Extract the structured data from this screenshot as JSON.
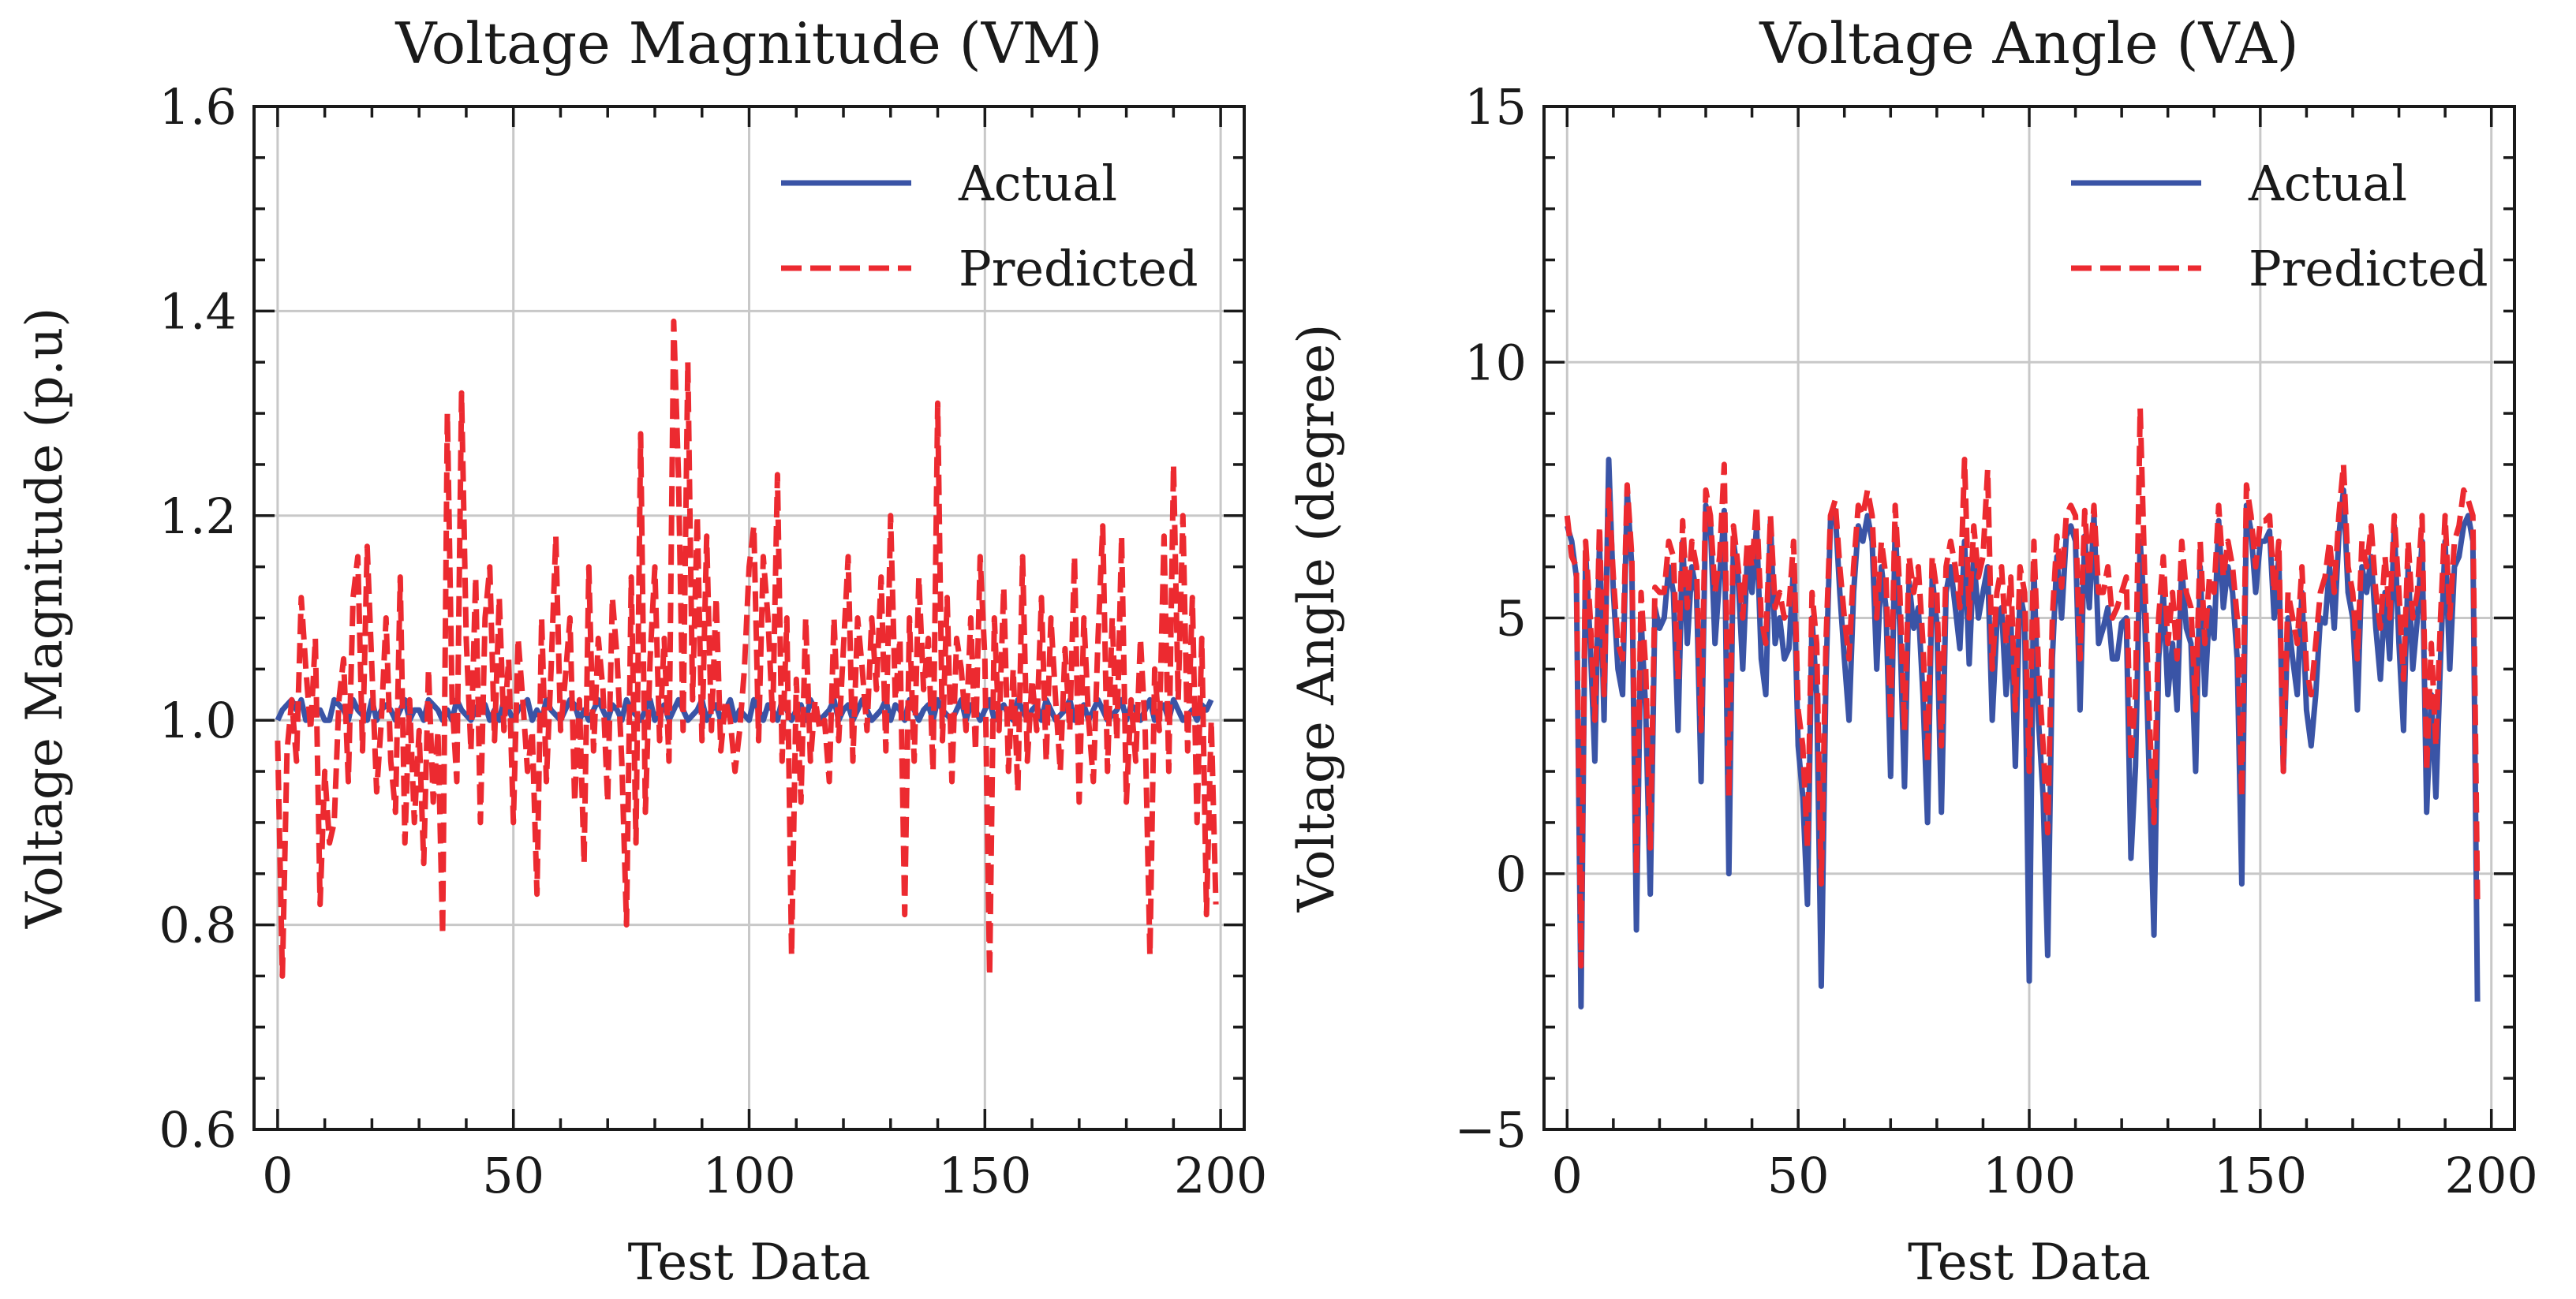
{
  "chart_data": [
    {
      "type": "line",
      "title": "Voltage Magnitude (VM)",
      "xlabel": "Test Data",
      "ylabel": "Voltage Magnitude (p.u)",
      "xlim": [
        -5,
        205
      ],
      "ylim": [
        0.6,
        1.6
      ],
      "xticks": [
        0,
        50,
        100,
        150,
        200
      ],
      "xtick_labels": [
        "0",
        "50",
        "100",
        "150",
        "200"
      ],
      "yticks": [
        0.6,
        0.8,
        1.0,
        1.2,
        1.4,
        1.6
      ],
      "ytick_labels": [
        "0.6",
        "0.8",
        "1.0",
        "1.2",
        "1.4",
        "1.6"
      ],
      "grid": true,
      "legend_position": "top-right",
      "series": [
        {
          "name": "Actual",
          "color": "#3a54a6",
          "style": "solid",
          "values": [
            1.0,
            1.01,
            1.015,
            1.02,
            1.01,
            1.02,
            1.0,
            1.005,
            1.01,
            1.01,
            1.0,
            1.0,
            1.02,
            1.015,
            1.01,
            1.0,
            1.02,
            1.01,
            1.005,
            1.0,
            1.02,
            1.0,
            1.01,
            1.015,
            1.01,
            1.0,
            1.01,
            1.02,
            1.0,
            1.01,
            1.01,
            1.0,
            1.02,
            1.015,
            1.01,
            1.0,
            1.01,
            1.0,
            1.02,
            1.01,
            1.005,
            1.0,
            1.01,
            1.02,
            1.015,
            1.0,
            1.01,
            1.0,
            1.02,
            1.01,
            1.0,
            1.01,
            1.015,
            1.02,
            1.0,
            1.01,
            1.0,
            1.02,
            1.01,
            1.005,
            1.0,
            1.01,
            1.02,
            1.015,
            1.0,
            1.01,
            1.0,
            1.01,
            1.02,
            1.01,
            1.0,
            1.015,
            1.01,
            1.0,
            1.02,
            1.01,
            1.005,
            1.0,
            1.01,
            1.02,
            1.0,
            1.01,
            1.015,
            1.0,
            1.01,
            1.02,
            1.01,
            1.0,
            1.005,
            1.01,
            1.02,
            1.0,
            1.01,
            1.015,
            1.0,
            1.01,
            1.02,
            1.0,
            1.01,
            1.005,
            1.0,
            1.02,
            1.01,
            1.0,
            1.015,
            1.01,
            1.0,
            1.02,
            1.01,
            1.0,
            1.01,
            1.015,
            1.0,
            1.02,
            1.01,
            1.0,
            1.005,
            1.01,
            1.02,
            1.0,
            1.01,
            1.015,
            1.0,
            1.01,
            1.02,
            1.01,
            1.0,
            1.005,
            1.01,
            1.02,
            1.0,
            1.015,
            1.01,
            1.0,
            1.02,
            1.01,
            1.0,
            1.01,
            1.015,
            1.0,
            1.02,
            1.01,
            1.005,
            1.0,
            1.01,
            1.02,
            1.0,
            1.015,
            1.01,
            1.0,
            1.01,
            1.02,
            1.0,
            1.01,
            1.015,
            1.005,
            1.0,
            1.02,
            1.01,
            1.0,
            1.01,
            1.015,
            1.0,
            1.02,
            1.01,
            1.0,
            1.005,
            1.01,
            1.02,
            1.0,
            1.01,
            1.015,
            1.0,
            1.01,
            1.02,
            1.01,
            1.0,
            1.005,
            1.01,
            1.02,
            1.0,
            1.015,
            1.01,
            1.0,
            1.01,
            1.02,
            1.0,
            1.01,
            1.015,
            1.0,
            1.02,
            1.01,
            1.0,
            1.005,
            1.01,
            1.0,
            1.015,
            1.01,
            1.02
          ]
        },
        {
          "name": "Predicted",
          "color": "#ec2a30",
          "style": "dashed",
          "values": [
            0.98,
            0.75,
            0.97,
            1.02,
            0.96,
            1.12,
            1.05,
            0.99,
            1.08,
            0.82,
            0.95,
            0.88,
            0.9,
            1.02,
            1.06,
            0.94,
            1.12,
            1.16,
            0.97,
            1.17,
            1.05,
            0.93,
            1.0,
            1.1,
            0.96,
            0.91,
            1.14,
            0.88,
            1.02,
            0.9,
            0.99,
            0.86,
            1.05,
            0.92,
            0.99,
            0.79,
            1.3,
            1.02,
            0.94,
            1.32,
            1.08,
            0.97,
            1.14,
            0.9,
            1.1,
            1.15,
            0.98,
            1.12,
            0.99,
            1.06,
            0.9,
            1.08,
            1.02,
            0.95,
            0.99,
            0.83,
            1.1,
            0.94,
            1.05,
            1.18,
            0.99,
            1.04,
            1.1,
            0.92,
            1.02,
            0.86,
            1.15,
            0.97,
            1.08,
            1.03,
            0.92,
            1.12,
            1.06,
            0.96,
            0.8,
            1.14,
            0.88,
            1.28,
            0.91,
            1.06,
            1.15,
            0.98,
            1.08,
            0.96,
            1.39,
            1.24,
            0.99,
            1.35,
            1.02,
            1.2,
            0.98,
            1.18,
            0.99,
            1.12,
            0.97,
            1.02,
            1.0,
            0.95,
            0.99,
            1.05,
            1.15,
            1.19,
            0.98,
            1.16,
            1.1,
            1.0,
            1.24,
            0.96,
            1.1,
            0.77,
            1.04,
            0.92,
            1.1,
            0.96,
            1.02,
            0.99,
            1.0,
            0.94,
            1.1,
            0.98,
            1.07,
            1.16,
            0.96,
            1.1,
            1.05,
            0.99,
            1.1,
            1.03,
            1.14,
            0.97,
            1.2,
            1.02,
            1.08,
            0.81,
            1.1,
            0.96,
            1.14,
            1.03,
            1.08,
            0.95,
            1.31,
            0.98,
            1.12,
            0.94,
            1.08,
            1.05,
            0.99,
            1.1,
            0.97,
            1.16,
            1.06,
            0.75,
            1.1,
            0.99,
            1.13,
            0.95,
            1.05,
            0.93,
            1.16,
            0.96,
            1.04,
            0.99,
            1.12,
            0.96,
            1.1,
            1.02,
            0.95,
            1.07,
            0.99,
            1.16,
            0.92,
            1.1,
            1.0,
            0.94,
            1.08,
            1.19,
            0.95,
            1.1,
            0.98,
            1.18,
            0.92,
            1.02,
            0.96,
            1.08,
            0.99,
            0.77,
            1.05,
            0.99,
            1.18,
            0.95,
            1.25,
            1.02,
            1.2,
            0.97,
            1.12,
            0.9,
            1.08,
            0.81,
            1.0,
            0.82
          ]
        }
      ]
    },
    {
      "type": "line",
      "title": "Voltage Angle (VA)",
      "xlabel": "Test Data",
      "ylabel": "Voltage Angle (degree)",
      "xlim": [
        -5,
        205
      ],
      "ylim": [
        -5,
        15
      ],
      "xticks": [
        0,
        50,
        100,
        150,
        200
      ],
      "xtick_labels": [
        "0",
        "50",
        "100",
        "150",
        "200"
      ],
      "yticks": [
        -5,
        0,
        5,
        10,
        15
      ],
      "ytick_labels": [
        "−5",
        "0",
        "5",
        "10",
        "15"
      ],
      "grid": true,
      "legend_position": "top-right",
      "series": [
        {
          "name": "Actual",
          "color": "#3a54a6",
          "style": "solid",
          "values": [
            6.8,
            6.5,
            5.8,
            -2.6,
            6.3,
            4.5,
            2.2,
            6.5,
            3.0,
            8.1,
            5.5,
            4.0,
            3.5,
            7.5,
            6.0,
            -1.1,
            5.0,
            3.2,
            -0.4,
            5.2,
            4.8,
            5.0,
            6.0,
            5.5,
            2.8,
            6.5,
            4.5,
            6.0,
            5.5,
            1.8,
            7.2,
            6.8,
            4.5,
            5.8,
            7.1,
            0.0,
            6.5,
            5.8,
            4.0,
            6.2,
            5.5,
            6.8,
            4.2,
            3.5,
            6.9,
            4.5,
            5.0,
            4.2,
            4.4,
            6.0,
            2.5,
            1.5,
            -0.6,
            5.0,
            3.5,
            -2.2,
            3.8,
            6.9,
            7.1,
            5.5,
            4.2,
            3.0,
            5.5,
            6.8,
            6.5,
            7.0,
            6.5,
            4.0,
            6.0,
            5.2,
            1.9,
            6.8,
            4.8,
            1.7,
            5.7,
            4.8,
            5.2,
            3.5,
            1.0,
            5.8,
            4.9,
            1.2,
            5.5,
            6.0,
            5.2,
            4.4,
            6.5,
            4.1,
            6.2,
            5.0,
            5.5,
            6.0,
            3.0,
            4.9,
            5.2,
            3.5,
            5.0,
            2.1,
            5.5,
            5.0,
            -2.1,
            6.0,
            3.0,
            1.5,
            -1.6,
            4.2,
            6.2,
            5.0,
            6.6,
            6.8,
            6.5,
            3.2,
            6.6,
            5.2,
            7.0,
            4.5,
            4.8,
            5.2,
            4.2,
            4.2,
            4.9,
            5.0,
            0.3,
            2.1,
            6.5,
            5.0,
            1.8,
            -1.2,
            4.2,
            5.5,
            3.5,
            4.5,
            3.2,
            6.0,
            4.8,
            4.5,
            2.0,
            6.0,
            3.5,
            5.2,
            4.6,
            6.9,
            5.2,
            6.0,
            5.5,
            4.2,
            -0.2,
            7.2,
            6.7,
            5.5,
            6.5,
            6.5,
            6.7,
            5.0,
            6.2,
            2.0,
            5.0,
            4.2,
            3.5,
            5.5,
            3.2,
            2.5,
            3.5,
            5.0,
            4.9,
            6.0,
            4.8,
            6.6,
            7.5,
            5.5,
            5.0,
            3.2,
            6.0,
            5.5,
            6.2,
            4.8,
            3.8,
            5.5,
            4.2,
            6.8,
            4.5,
            2.8,
            6.0,
            4.0,
            5.0,
            6.5,
            1.2,
            3.5,
            1.5,
            4.2,
            6.5,
            4.0,
            6.0,
            6.2,
            6.8,
            7.0,
            6.5,
            -2.5
          ]
        },
        {
          "name": "Predicted",
          "color": "#ec2a30",
          "style": "dashed",
          "values": [
            7.0,
            6.2,
            6.0,
            -1.8,
            6.5,
            5.0,
            3.0,
            6.8,
            3.5,
            7.5,
            5.8,
            4.5,
            4.2,
            7.6,
            6.2,
            0.0,
            5.5,
            4.0,
            0.5,
            5.6,
            5.5,
            5.5,
            6.5,
            6.2,
            3.8,
            6.9,
            5.2,
            6.5,
            6.0,
            2.8,
            7.5,
            7.0,
            5.5,
            6.2,
            8.0,
            1.5,
            6.8,
            6.0,
            5.0,
            6.5,
            6.0,
            7.2,
            5.0,
            4.5,
            7.0,
            5.2,
            5.5,
            5.0,
            5.2,
            6.5,
            3.2,
            2.5,
            0.5,
            5.5,
            4.5,
            -0.2,
            4.5,
            7.0,
            7.3,
            6.0,
            5.0,
            4.2,
            6.0,
            7.2,
            7.0,
            7.5,
            7.0,
            5.0,
            6.5,
            5.8,
            3.0,
            7.2,
            5.5,
            2.8,
            6.2,
            5.5,
            6.0,
            4.5,
            2.2,
            6.2,
            5.5,
            2.5,
            6.0,
            6.5,
            6.0,
            5.2,
            8.1,
            5.0,
            6.8,
            5.8,
            6.2,
            7.9,
            4.0,
            5.5,
            6.0,
            4.5,
            5.8,
            3.2,
            6.0,
            5.5,
            2.0,
            6.5,
            4.0,
            2.5,
            0.8,
            5.0,
            6.6,
            5.6,
            7.0,
            7.2,
            7.0,
            4.2,
            7.1,
            5.8,
            7.2,
            5.5,
            5.5,
            6.0,
            5.0,
            5.2,
            5.5,
            5.8,
            2.2,
            3.5,
            9.1,
            5.8,
            3.0,
            1.0,
            5.0,
            6.2,
            4.5,
            5.5,
            4.2,
            6.5,
            5.5,
            5.2,
            3.2,
            6.5,
            4.5,
            5.8,
            5.5,
            7.2,
            5.8,
            6.5,
            6.0,
            5.0,
            1.5,
            7.6,
            7.0,
            6.0,
            6.9,
            6.9,
            7.0,
            5.5,
            6.5,
            2.0,
            5.5,
            5.0,
            4.5,
            6.0,
            4.0,
            3.5,
            4.5,
            5.5,
            5.8,
            6.5,
            5.5,
            7.0,
            8.0,
            6.0,
            5.5,
            4.2,
            6.5,
            6.0,
            6.8,
            5.5,
            4.8,
            6.2,
            5.0,
            7.0,
            5.5,
            3.8,
            6.5,
            5.0,
            5.5,
            7.0,
            2.0,
            4.5,
            2.5,
            5.0,
            7.0,
            5.0,
            6.5,
            6.8,
            7.5,
            7.3,
            7.0,
            -0.5
          ]
        }
      ]
    }
  ]
}
